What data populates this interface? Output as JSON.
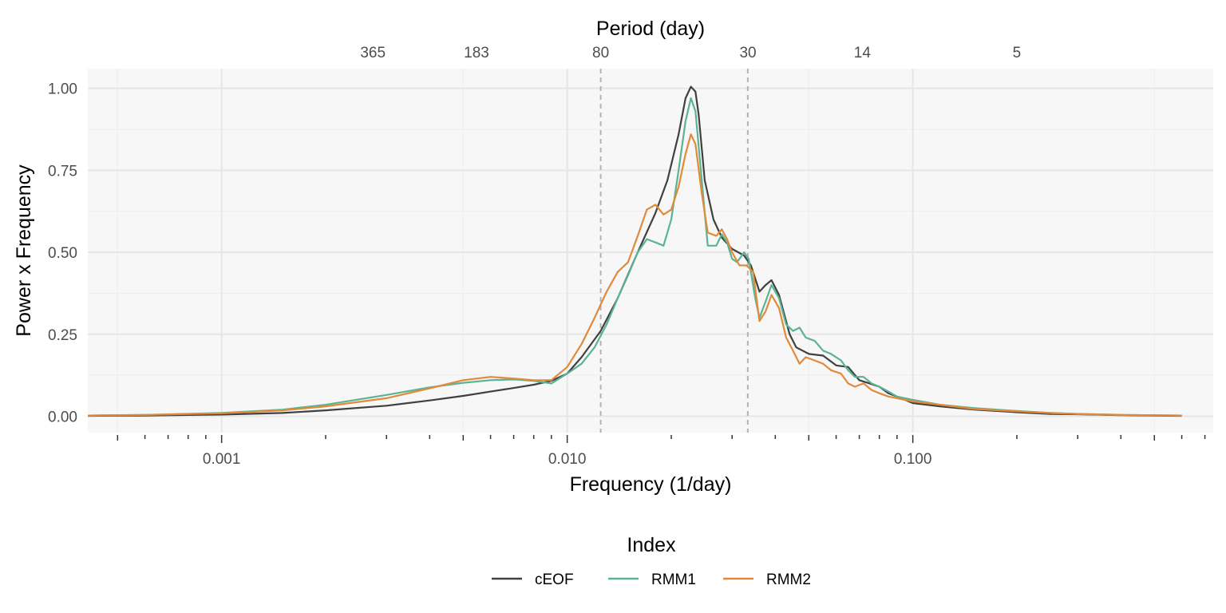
{
  "chart_data": {
    "type": "line",
    "xlabel": "Frequency (1/day)",
    "ylabel": "Power x Frequency",
    "top_axis_label": "Period (day)",
    "x_scale": "log10",
    "xlim": [
      0.00041,
      0.74
    ],
    "ylim": [
      -0.05,
      1.06
    ],
    "x_ticks": [
      {
        "value": 0.001,
        "label": "0.001"
      },
      {
        "value": 0.01,
        "label": "0.010"
      },
      {
        "value": 0.1,
        "label": "0.100"
      }
    ],
    "y_ticks": [
      {
        "value": 0,
        "label": "0.00"
      },
      {
        "value": 0.25,
        "label": "0.25"
      },
      {
        "value": 0.5,
        "label": "0.50"
      },
      {
        "value": 0.75,
        "label": "0.75"
      },
      {
        "value": 1.0,
        "label": "1.00"
      }
    ],
    "top_ticks": [
      {
        "period": 365,
        "label": "365"
      },
      {
        "period": 183,
        "label": "183"
      },
      {
        "period": 80,
        "label": "80"
      },
      {
        "period": 30,
        "label": "30"
      },
      {
        "period": 14,
        "label": "14"
      },
      {
        "period": 5,
        "label": "5"
      }
    ],
    "vlines": [
      0.0125,
      0.0333
    ],
    "grid": true,
    "legend": {
      "title": "Index",
      "position": "bottom"
    },
    "series": [
      {
        "name": "cEOF",
        "color": "#404040",
        "points": [
          [
            0.00041,
            0.001
          ],
          [
            0.0006,
            0.002
          ],
          [
            0.001,
            0.005
          ],
          [
            0.0015,
            0.01
          ],
          [
            0.002,
            0.018
          ],
          [
            0.003,
            0.032
          ],
          [
            0.004,
            0.048
          ],
          [
            0.005,
            0.062
          ],
          [
            0.006,
            0.075
          ],
          [
            0.007,
            0.086
          ],
          [
            0.008,
            0.096
          ],
          [
            0.009,
            0.108
          ],
          [
            0.01,
            0.13
          ],
          [
            0.011,
            0.18
          ],
          [
            0.0125,
            0.26
          ],
          [
            0.014,
            0.36
          ],
          [
            0.016,
            0.5
          ],
          [
            0.018,
            0.62
          ],
          [
            0.0195,
            0.72
          ],
          [
            0.021,
            0.86
          ],
          [
            0.022,
            0.97
          ],
          [
            0.0228,
            1.005
          ],
          [
            0.0235,
            0.99
          ],
          [
            0.024,
            0.92
          ],
          [
            0.025,
            0.72
          ],
          [
            0.0265,
            0.6
          ],
          [
            0.028,
            0.545
          ],
          [
            0.03,
            0.51
          ],
          [
            0.0325,
            0.49
          ],
          [
            0.034,
            0.46
          ],
          [
            0.036,
            0.38
          ],
          [
            0.0375,
            0.4
          ],
          [
            0.039,
            0.415
          ],
          [
            0.041,
            0.37
          ],
          [
            0.044,
            0.25
          ],
          [
            0.046,
            0.21
          ],
          [
            0.05,
            0.19
          ],
          [
            0.055,
            0.185
          ],
          [
            0.06,
            0.155
          ],
          [
            0.065,
            0.15
          ],
          [
            0.07,
            0.11
          ],
          [
            0.075,
            0.1
          ],
          [
            0.08,
            0.09
          ],
          [
            0.085,
            0.07
          ],
          [
            0.09,
            0.06
          ],
          [
            0.1,
            0.04
          ],
          [
            0.12,
            0.03
          ],
          [
            0.15,
            0.02
          ],
          [
            0.2,
            0.012
          ],
          [
            0.25,
            0.007
          ],
          [
            0.3,
            0.006
          ],
          [
            0.4,
            0.003
          ],
          [
            0.5,
            0.002
          ],
          [
            0.6,
            0.001
          ]
        ]
      },
      {
        "name": "RMM1",
        "color": "#5bb393",
        "points": [
          [
            0.00041,
            0.002
          ],
          [
            0.0006,
            0.004
          ],
          [
            0.001,
            0.01
          ],
          [
            0.0015,
            0.02
          ],
          [
            0.002,
            0.035
          ],
          [
            0.003,
            0.065
          ],
          [
            0.004,
            0.088
          ],
          [
            0.005,
            0.102
          ],
          [
            0.006,
            0.11
          ],
          [
            0.007,
            0.112
          ],
          [
            0.008,
            0.108
          ],
          [
            0.009,
            0.1
          ],
          [
            0.01,
            0.13
          ],
          [
            0.011,
            0.16
          ],
          [
            0.012,
            0.21
          ],
          [
            0.013,
            0.28
          ],
          [
            0.014,
            0.36
          ],
          [
            0.015,
            0.43
          ],
          [
            0.016,
            0.5
          ],
          [
            0.017,
            0.54
          ],
          [
            0.018,
            0.53
          ],
          [
            0.019,
            0.52
          ],
          [
            0.02,
            0.6
          ],
          [
            0.021,
            0.75
          ],
          [
            0.022,
            0.9
          ],
          [
            0.0228,
            0.97
          ],
          [
            0.0235,
            0.93
          ],
          [
            0.0245,
            0.72
          ],
          [
            0.0255,
            0.52
          ],
          [
            0.027,
            0.52
          ],
          [
            0.028,
            0.555
          ],
          [
            0.029,
            0.53
          ],
          [
            0.03,
            0.48
          ],
          [
            0.031,
            0.47
          ],
          [
            0.0325,
            0.5
          ],
          [
            0.0335,
            0.48
          ],
          [
            0.035,
            0.36
          ],
          [
            0.036,
            0.3
          ],
          [
            0.0375,
            0.35
          ],
          [
            0.039,
            0.4
          ],
          [
            0.041,
            0.36
          ],
          [
            0.043,
            0.28
          ],
          [
            0.045,
            0.26
          ],
          [
            0.047,
            0.27
          ],
          [
            0.049,
            0.24
          ],
          [
            0.052,
            0.23
          ],
          [
            0.055,
            0.2
          ],
          [
            0.058,
            0.19
          ],
          [
            0.062,
            0.17
          ],
          [
            0.065,
            0.14
          ],
          [
            0.068,
            0.12
          ],
          [
            0.072,
            0.12
          ],
          [
            0.076,
            0.1
          ],
          [
            0.08,
            0.09
          ],
          [
            0.085,
            0.075
          ],
          [
            0.09,
            0.06
          ],
          [
            0.1,
            0.05
          ],
          [
            0.12,
            0.035
          ],
          [
            0.15,
            0.025
          ],
          [
            0.2,
            0.016
          ],
          [
            0.25,
            0.01
          ],
          [
            0.3,
            0.007
          ],
          [
            0.4,
            0.004
          ],
          [
            0.5,
            0.003
          ],
          [
            0.6,
            0.002
          ]
        ]
      },
      {
        "name": "RMM2",
        "color": "#e08a3c",
        "points": [
          [
            0.00041,
            0.002
          ],
          [
            0.0006,
            0.004
          ],
          [
            0.001,
            0.009
          ],
          [
            0.0015,
            0.018
          ],
          [
            0.002,
            0.03
          ],
          [
            0.003,
            0.055
          ],
          [
            0.004,
            0.085
          ],
          [
            0.005,
            0.11
          ],
          [
            0.006,
            0.12
          ],
          [
            0.007,
            0.115
          ],
          [
            0.008,
            0.11
          ],
          [
            0.009,
            0.11
          ],
          [
            0.01,
            0.15
          ],
          [
            0.011,
            0.22
          ],
          [
            0.012,
            0.3
          ],
          [
            0.013,
            0.38
          ],
          [
            0.014,
            0.44
          ],
          [
            0.015,
            0.47
          ],
          [
            0.016,
            0.55
          ],
          [
            0.017,
            0.63
          ],
          [
            0.018,
            0.645
          ],
          [
            0.019,
            0.615
          ],
          [
            0.02,
            0.63
          ],
          [
            0.021,
            0.7
          ],
          [
            0.022,
            0.8
          ],
          [
            0.0228,
            0.86
          ],
          [
            0.0235,
            0.83
          ],
          [
            0.0245,
            0.68
          ],
          [
            0.0255,
            0.56
          ],
          [
            0.027,
            0.55
          ],
          [
            0.028,
            0.57
          ],
          [
            0.029,
            0.54
          ],
          [
            0.03,
            0.5
          ],
          [
            0.0315,
            0.46
          ],
          [
            0.033,
            0.46
          ],
          [
            0.0345,
            0.44
          ],
          [
            0.036,
            0.29
          ],
          [
            0.0375,
            0.32
          ],
          [
            0.039,
            0.37
          ],
          [
            0.041,
            0.33
          ],
          [
            0.043,
            0.24
          ],
          [
            0.045,
            0.2
          ],
          [
            0.047,
            0.16
          ],
          [
            0.049,
            0.18
          ],
          [
            0.052,
            0.17
          ],
          [
            0.055,
            0.16
          ],
          [
            0.058,
            0.14
          ],
          [
            0.062,
            0.13
          ],
          [
            0.065,
            0.1
          ],
          [
            0.068,
            0.09
          ],
          [
            0.072,
            0.1
          ],
          [
            0.076,
            0.08
          ],
          [
            0.08,
            0.07
          ],
          [
            0.085,
            0.06
          ],
          [
            0.09,
            0.055
          ],
          [
            0.1,
            0.045
          ],
          [
            0.12,
            0.035
          ],
          [
            0.15,
            0.022
          ],
          [
            0.2,
            0.015
          ],
          [
            0.25,
            0.01
          ],
          [
            0.3,
            0.007
          ],
          [
            0.4,
            0.004
          ],
          [
            0.5,
            0.003
          ],
          [
            0.6,
            0.002
          ]
        ]
      }
    ]
  }
}
